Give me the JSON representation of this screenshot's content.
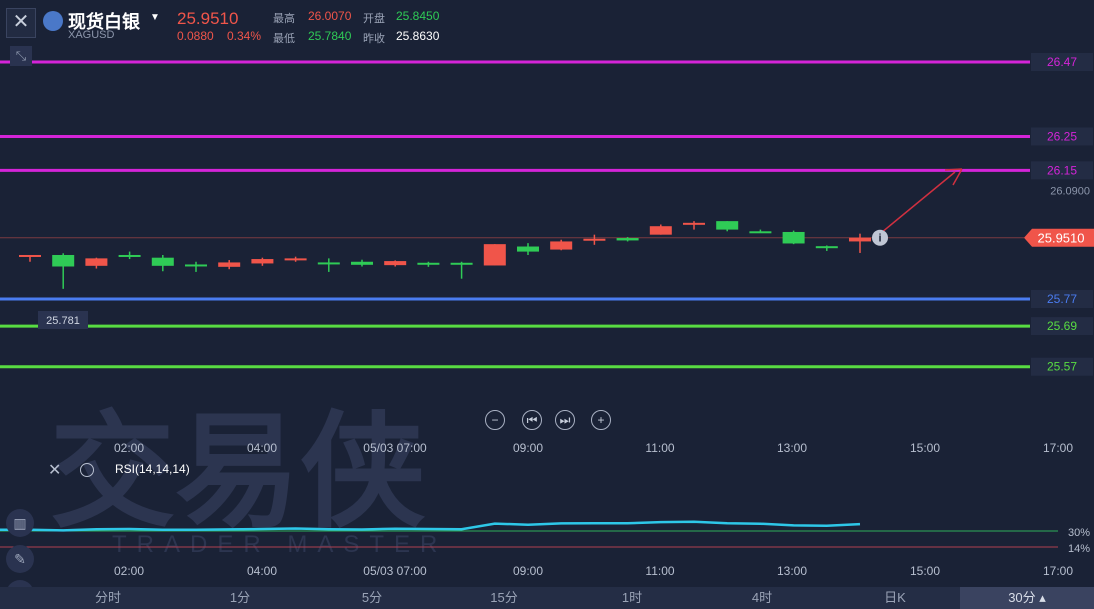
{
  "header": {
    "close_label": "✕",
    "name": "现货白银",
    "code": "XAGUSD",
    "price": "25.9510",
    "change": "0.0880",
    "change_pct": "0.34%",
    "high_label": "最高",
    "high": "26.0070",
    "open_label": "开盘",
    "open": "25.8450",
    "low_label": "最低",
    "low": "25.7840",
    "prev_label": "昨收",
    "prev_close": "25.8630"
  },
  "colors": {
    "up": "#f0554a",
    "down": "#2fcb56",
    "magenta": "#d424d8",
    "blue": "#4a7cf0",
    "green_line": "#58dc42",
    "rsi": "#2ec8e8"
  },
  "watermark": {
    "cn": "交易侠",
    "en": "TRADER MASTER"
  },
  "chart_data": {
    "type": "candlestick",
    "x_ticks_top": [
      "02:00",
      "04:00",
      "05/03 07:00",
      "09:00",
      "11:00",
      "13:00",
      "15:00",
      "17:00"
    ],
    "x_ticks_bottom": [
      "02:00",
      "04:00",
      "05/03 07:00",
      "09:00",
      "11:00",
      "13:00",
      "15:00",
      "17:00"
    ],
    "ylim": [
      25.54,
      26.52
    ],
    "candles": [
      {
        "o": 25.9,
        "h": 25.9,
        "l": 25.88,
        "c": 25.9
      },
      {
        "o": 25.9,
        "h": 25.905,
        "l": 25.8,
        "c": 25.866
      },
      {
        "o": 25.868,
        "h": 25.892,
        "l": 25.86,
        "c": 25.89
      },
      {
        "o": 25.9,
        "h": 25.91,
        "l": 25.888,
        "c": 25.898
      },
      {
        "o": 25.892,
        "h": 25.9,
        "l": 25.852,
        "c": 25.868
      },
      {
        "o": 25.872,
        "h": 25.88,
        "l": 25.85,
        "c": 25.868
      },
      {
        "o": 25.865,
        "h": 25.885,
        "l": 25.858,
        "c": 25.878
      },
      {
        "o": 25.875,
        "h": 25.892,
        "l": 25.868,
        "c": 25.888
      },
      {
        "o": 25.885,
        "h": 25.895,
        "l": 25.88,
        "c": 25.89
      },
      {
        "o": 25.878,
        "h": 25.89,
        "l": 25.85,
        "c": 25.877
      },
      {
        "o": 25.88,
        "h": 25.886,
        "l": 25.866,
        "c": 25.871
      },
      {
        "o": 25.87,
        "h": 25.884,
        "l": 25.866,
        "c": 25.882
      },
      {
        "o": 25.877,
        "h": 25.88,
        "l": 25.865,
        "c": 25.875
      },
      {
        "o": 25.877,
        "h": 25.88,
        "l": 25.83,
        "c": 25.875
      },
      {
        "o": 25.869,
        "h": 25.932,
        "l": 25.869,
        "c": 25.932
      },
      {
        "o": 25.925,
        "h": 25.935,
        "l": 25.9,
        "c": 25.91
      },
      {
        "o": 25.916,
        "h": 25.945,
        "l": 25.914,
        "c": 25.94
      },
      {
        "o": 25.948,
        "h": 25.96,
        "l": 25.93,
        "c": 25.948
      },
      {
        "o": 25.95,
        "h": 25.953,
        "l": 25.94,
        "c": 25.943
      },
      {
        "o": 25.96,
        "h": 25.99,
        "l": 25.96,
        "c": 25.985
      },
      {
        "o": 25.99,
        "h": 26.0,
        "l": 25.975,
        "c": 25.995
      },
      {
        "o": 26.0,
        "h": 26.0,
        "l": 25.97,
        "c": 25.975
      },
      {
        "o": 25.97,
        "h": 25.975,
        "l": 25.965,
        "c": 25.968
      },
      {
        "o": 25.968,
        "h": 25.972,
        "l": 25.932,
        "c": 25.934
      },
      {
        "o": 25.926,
        "h": 25.928,
        "l": 25.912,
        "c": 25.924
      },
      {
        "o": 25.94,
        "h": 25.963,
        "l": 25.906,
        "c": 25.951
      }
    ],
    "levels": [
      {
        "value": 25.57,
        "label": "25.57",
        "color": "green"
      },
      {
        "value": 25.69,
        "label": "25.69",
        "color": "green"
      },
      {
        "value": 25.77,
        "label": "25.77",
        "color": "blue"
      },
      {
        "value": 26.15,
        "label": "26.15",
        "color": "magenta"
      },
      {
        "value": 26.25,
        "label": "26.25",
        "color": "magenta"
      },
      {
        "value": 26.47,
        "label": "26.47",
        "color": "magenta"
      }
    ],
    "current_price_label": "25.9510",
    "dotted_label": "26.0900",
    "low_marker_label": "25.781",
    "rsi": {
      "label": "RSI(14,14,14)",
      "values": [
        31.2,
        30.6,
        31.8,
        32.0,
        31.3,
        31.2,
        31.6,
        32.0,
        32.5,
        31.8,
        31.5,
        32.3,
        32.0,
        31.8,
        37.4,
        36.3,
        37.6,
        37.8,
        37.7,
        38.9,
        39.2,
        37.7,
        37.3,
        35.6,
        35.3,
        36.9
      ],
      "levels": [
        {
          "value": 30,
          "label": "30%"
        },
        {
          "value": 14,
          "label": "14%"
        }
      ]
    }
  },
  "nav_buttons": {
    "zoom_out": "−",
    "prev": "⏮",
    "next": "⏭",
    "zoom_in": "+"
  },
  "tabs": [
    "分时",
    "1分",
    "5分",
    "15分",
    "1时",
    "4时",
    "日K",
    "30分 ▴"
  ]
}
